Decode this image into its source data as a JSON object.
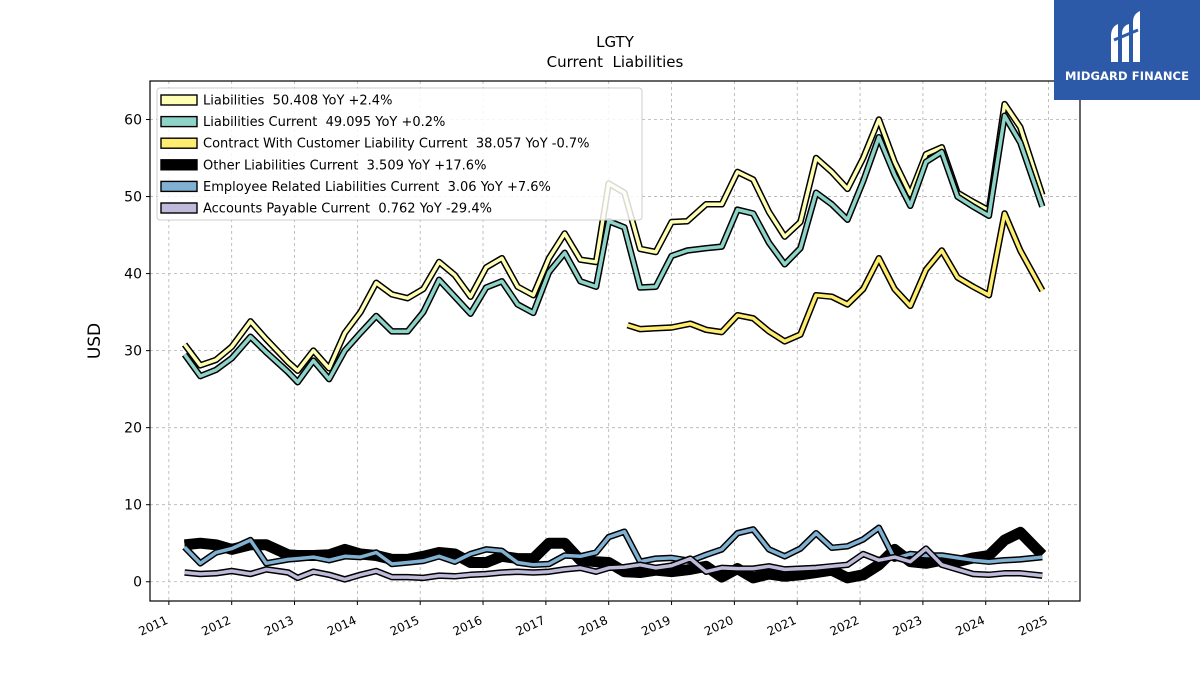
{
  "brand": {
    "name": "MIDGARD FINANCE",
    "bg_color": "#2c5aa8"
  },
  "chart_data": {
    "type": "line",
    "title": "LGTY",
    "subtitle": "Current  Liabilities",
    "ylabel": "USD",
    "xlabel": "",
    "xlim": [
      2010.7,
      2025.5
    ],
    "ylim": [
      -2.5,
      65
    ],
    "yticks": [
      0,
      10,
      20,
      30,
      40,
      50,
      60
    ],
    "xticks": [
      "2011",
      "2012",
      "2013",
      "2014",
      "2015",
      "2016",
      "2017",
      "2018",
      "2019",
      "2020",
      "2021",
      "2022",
      "2023",
      "2024",
      "2025"
    ],
    "grid": true,
    "legend_position": "top-left",
    "series": [
      {
        "name": "Liabilities  50.408 YoY +2.4%",
        "color": "#ffffb3",
        "width": 3.5,
        "x": [
          2011.25,
          2011.5,
          2011.75,
          2012.0,
          2012.3,
          2012.55,
          2012.9,
          2013.05,
          2013.3,
          2013.55,
          2013.8,
          2014.05,
          2014.3,
          2014.55,
          2014.8,
          2015.05,
          2015.3,
          2015.55,
          2015.8,
          2016.05,
          2016.3,
          2016.55,
          2016.8,
          2017.05,
          2017.3,
          2017.55,
          2017.8,
          2018.0,
          2018.25,
          2018.5,
          2018.75,
          2019.0,
          2019.25,
          2019.55,
          2019.8,
          2020.05,
          2020.3,
          2020.55,
          2020.8,
          2021.05,
          2021.3,
          2021.55,
          2021.8,
          2022.05,
          2022.3,
          2022.55,
          2022.8,
          2023.05,
          2023.3,
          2023.55,
          2023.8,
          2024.05,
          2024.3,
          2024.55,
          2024.9
        ],
        "y": [
          30.8,
          28.1,
          28.8,
          30.5,
          33.8,
          31.5,
          28.5,
          27.4,
          30.0,
          27.7,
          32.3,
          35.0,
          38.8,
          37.3,
          36.8,
          38.0,
          41.5,
          39.8,
          37.0,
          40.8,
          42.0,
          38.3,
          37.2,
          42.0,
          45.2,
          41.8,
          41.5,
          51.7,
          50.5,
          43.2,
          42.8,
          46.7,
          46.8,
          49.0,
          49.0,
          53.2,
          52.2,
          48.0,
          44.8,
          46.7,
          55.0,
          53.2,
          51.0,
          55.0,
          60.0,
          54.5,
          50.3,
          55.5,
          56.4,
          50.5,
          49.3,
          48.2,
          62.0,
          59.0,
          50.2
        ]
      },
      {
        "name": "Liabilities Current  49.095 YoY +0.2%",
        "color": "#8dd3c7",
        "width": 3.5,
        "x": [
          2011.25,
          2011.5,
          2011.75,
          2012.0,
          2012.3,
          2012.55,
          2012.9,
          2013.05,
          2013.3,
          2013.55,
          2013.8,
          2014.05,
          2014.3,
          2014.55,
          2014.8,
          2015.05,
          2015.3,
          2015.55,
          2015.8,
          2016.05,
          2016.3,
          2016.55,
          2016.8,
          2017.05,
          2017.3,
          2017.55,
          2017.8,
          2018.0,
          2018.25,
          2018.5,
          2018.75,
          2019.0,
          2019.25,
          2019.55,
          2019.8,
          2020.05,
          2020.3,
          2020.55,
          2020.8,
          2021.05,
          2021.3,
          2021.55,
          2021.8,
          2022.05,
          2022.3,
          2022.55,
          2022.8,
          2023.05,
          2023.3,
          2023.55,
          2023.8,
          2024.05,
          2024.3,
          2024.55,
          2024.9
        ],
        "y": [
          29.5,
          26.7,
          27.5,
          29.0,
          31.8,
          29.8,
          27.2,
          25.9,
          28.7,
          26.3,
          30.0,
          32.3,
          34.5,
          32.5,
          32.5,
          35.0,
          39.2,
          37.0,
          34.8,
          38.2,
          39.0,
          36.0,
          34.9,
          40.2,
          42.7,
          39.0,
          38.3,
          46.8,
          46.0,
          38.2,
          38.3,
          42.3,
          43.0,
          43.3,
          43.5,
          48.3,
          47.8,
          44.0,
          41.2,
          43.3,
          50.5,
          49.0,
          47.0,
          52.0,
          57.7,
          52.8,
          48.8,
          54.5,
          55.8,
          50.0,
          48.7,
          47.5,
          60.5,
          57.0,
          48.7
        ]
      },
      {
        "name": "Contract With Customer Liability Current  38.057 YoY -0.7%",
        "color": "#ffed6f",
        "width": 3.5,
        "x": [
          2018.3,
          2018.5,
          2018.75,
          2019.0,
          2019.3,
          2019.55,
          2019.8,
          2020.05,
          2020.3,
          2020.55,
          2020.8,
          2021.05,
          2021.3,
          2021.55,
          2021.8,
          2022.05,
          2022.3,
          2022.55,
          2022.8,
          2023.05,
          2023.3,
          2023.55,
          2023.8,
          2024.05,
          2024.3,
          2024.55,
          2024.9
        ],
        "y": [
          33.3,
          32.8,
          32.9,
          33.0,
          33.5,
          32.7,
          32.4,
          34.6,
          34.2,
          32.5,
          31.2,
          32.1,
          37.2,
          37.0,
          36.0,
          38.0,
          42.0,
          38.0,
          35.8,
          40.5,
          43.0,
          39.5,
          38.3,
          37.2,
          47.8,
          43.0,
          37.8
        ]
      },
      {
        "name": "Other Liabilities Current  3.509 YoY +17.6%",
        "color": "#000000",
        "width": 8,
        "x": [
          2011.25,
          2011.5,
          2011.75,
          2012.0,
          2012.3,
          2012.55,
          2012.9,
          2013.05,
          2013.3,
          2013.55,
          2013.8,
          2014.05,
          2014.3,
          2014.55,
          2014.8,
          2015.05,
          2015.3,
          2015.55,
          2015.8,
          2016.05,
          2016.3,
          2016.55,
          2016.8,
          2017.05,
          2017.3,
          2017.55,
          2017.8,
          2018.0,
          2018.25,
          2018.5,
          2018.75,
          2019.0,
          2019.3,
          2019.55,
          2019.8,
          2020.05,
          2020.3,
          2020.55,
          2020.8,
          2021.05,
          2021.3,
          2021.55,
          2021.8,
          2022.05,
          2022.3,
          2022.55,
          2022.8,
          2023.05,
          2023.3,
          2023.55,
          2023.8,
          2024.05,
          2024.3,
          2024.55,
          2024.9
        ],
        "y": [
          4.8,
          5.0,
          4.8,
          4.2,
          4.8,
          4.8,
          3.5,
          3.4,
          3.4,
          3.5,
          4.2,
          3.6,
          3.4,
          2.9,
          2.9,
          3.3,
          3.8,
          3.6,
          2.5,
          2.5,
          3.3,
          3.0,
          3.0,
          5.0,
          5.0,
          2.8,
          2.6,
          2.5,
          1.3,
          1.2,
          1.5,
          1.3,
          1.6,
          2.0,
          0.6,
          1.7,
          0.5,
          1.0,
          0.7,
          0.9,
          1.2,
          1.5,
          0.5,
          0.9,
          2.2,
          4.2,
          2.6,
          2.4,
          2.8,
          2.6,
          3.1,
          3.4,
          5.4,
          6.4,
          3.5
        ]
      },
      {
        "name": "Employee Related Liabilities Current  3.06 YoY +7.6%",
        "color": "#80b1d3",
        "width": 3.5,
        "x": [
          2011.25,
          2011.5,
          2011.75,
          2012.0,
          2012.3,
          2012.55,
          2012.9,
          2013.05,
          2013.3,
          2013.55,
          2013.8,
          2014.05,
          2014.3,
          2014.55,
          2014.8,
          2015.05,
          2015.3,
          2015.55,
          2015.8,
          2016.05,
          2016.3,
          2016.55,
          2016.8,
          2017.05,
          2017.3,
          2017.55,
          2017.8,
          2018.0,
          2018.25,
          2018.5,
          2018.75,
          2019.0,
          2019.3,
          2019.55,
          2019.8,
          2020.05,
          2020.3,
          2020.55,
          2020.8,
          2021.05,
          2021.3,
          2021.55,
          2021.8,
          2022.05,
          2022.3,
          2022.55,
          2022.8,
          2023.05,
          2023.3,
          2023.55,
          2023.8,
          2024.05,
          2024.3,
          2024.55,
          2024.9
        ],
        "y": [
          4.5,
          2.4,
          3.8,
          4.3,
          5.4,
          2.4,
          2.9,
          3.0,
          3.2,
          2.8,
          3.3,
          3.2,
          3.8,
          2.3,
          2.5,
          2.7,
          3.3,
          2.6,
          3.6,
          4.2,
          4.0,
          2.5,
          2.2,
          2.3,
          3.4,
          3.3,
          3.8,
          5.8,
          6.5,
          2.6,
          3.0,
          3.1,
          2.7,
          3.5,
          4.2,
          6.3,
          6.8,
          4.2,
          3.3,
          4.3,
          6.3,
          4.4,
          4.6,
          5.5,
          7.0,
          3.0,
          3.6,
          3.4,
          3.4,
          3.1,
          2.8,
          2.6,
          2.8,
          2.9,
          3.2
        ]
      },
      {
        "name": "Accounts Payable Current  0.762 YoY -29.4%",
        "color": "#bebada",
        "width": 3.5,
        "x": [
          2011.25,
          2011.5,
          2011.75,
          2012.0,
          2012.3,
          2012.55,
          2012.9,
          2013.05,
          2013.3,
          2013.55,
          2013.8,
          2014.05,
          2014.3,
          2014.55,
          2014.8,
          2015.05,
          2015.3,
          2015.55,
          2015.8,
          2016.05,
          2016.3,
          2016.55,
          2016.8,
          2017.05,
          2017.3,
          2017.55,
          2017.8,
          2018.0,
          2018.25,
          2018.5,
          2018.75,
          2019.0,
          2019.3,
          2019.55,
          2019.8,
          2020.05,
          2020.3,
          2020.55,
          2020.8,
          2021.05,
          2021.3,
          2021.55,
          2021.8,
          2022.05,
          2022.3,
          2022.55,
          2022.8,
          2023.05,
          2023.3,
          2023.55,
          2023.8,
          2024.05,
          2024.3,
          2024.55,
          2024.9
        ],
        "y": [
          1.2,
          1.0,
          1.1,
          1.4,
          1.0,
          1.6,
          1.2,
          0.5,
          1.3,
          0.9,
          0.3,
          0.9,
          1.4,
          0.6,
          0.6,
          0.5,
          0.8,
          0.7,
          0.9,
          1.0,
          1.2,
          1.3,
          1.2,
          1.3,
          1.6,
          1.8,
          1.3,
          1.8,
          1.9,
          2.2,
          1.8,
          2.1,
          3.0,
          1.3,
          1.8,
          1.7,
          1.7,
          2.0,
          1.6,
          1.7,
          1.8,
          2.0,
          2.2,
          3.6,
          2.8,
          3.2,
          2.6,
          4.3,
          2.2,
          1.6,
          1.0,
          0.9,
          1.1,
          1.1,
          0.8
        ]
      }
    ]
  }
}
